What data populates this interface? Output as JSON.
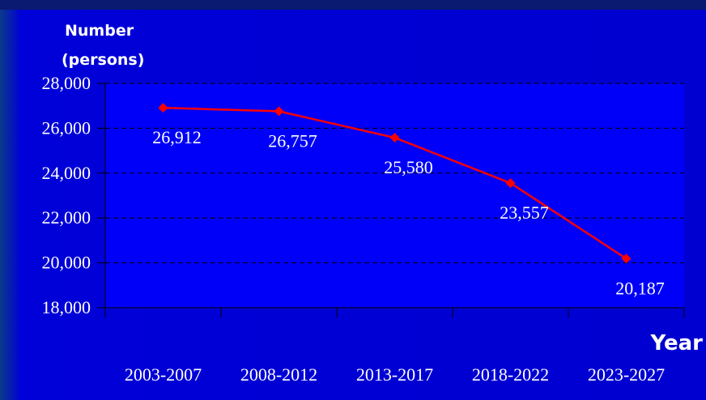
{
  "chart_data": {
    "type": "line",
    "y_label": [
      "Number",
      "(persons)"
    ],
    "x_label": "Year",
    "categories": [
      "2003-2007",
      "2008-2012",
      "2013-2017",
      "2018-2022",
      "2023-2027"
    ],
    "values": [
      26912,
      26757,
      25580,
      23557,
      20187
    ],
    "value_labels": [
      "26,912",
      "26,757",
      "25,580",
      "23,557",
      "20,187"
    ],
    "color": "#ff0000",
    "ylim": [
      18000,
      28000
    ],
    "yticks": [
      {
        "value": 18000,
        "label": "18,000"
      },
      {
        "value": 20000,
        "label": "20,000"
      },
      {
        "value": 22000,
        "label": "22,000"
      },
      {
        "value": 24000,
        "label": "24,000"
      },
      {
        "value": 26000,
        "label": "26,000"
      },
      {
        "value": 28000,
        "label": "28,000"
      }
    ],
    "grid": true
  }
}
